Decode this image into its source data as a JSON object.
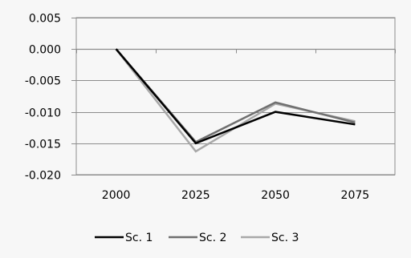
{
  "chart_data": {
    "type": "line",
    "title": "",
    "xlabel": "",
    "ylabel": "",
    "categories": [
      "2000",
      "2025",
      "2050",
      "2075"
    ],
    "ylim": [
      -0.02,
      0.005
    ],
    "y_ticks": [
      0.005,
      0.0,
      -0.005,
      -0.01,
      -0.015,
      -0.02
    ],
    "y_tick_labels": [
      "0.005",
      "0.000",
      "-0.005",
      "-0.010",
      "-0.015",
      "-0.020"
    ],
    "grid": true,
    "legend_position": "bottom",
    "series": [
      {
        "name": "Sc. 1",
        "color": "#000000",
        "values": [
          0.0,
          -0.015,
          -0.01,
          -0.012
        ]
      },
      {
        "name": "Sc. 2",
        "color": "#6f6f6f",
        "values": [
          0.0,
          -0.0148,
          -0.0085,
          -0.0117
        ]
      },
      {
        "name": "Sc. 3",
        "color": "#a8a8a8",
        "values": [
          0.0,
          -0.0163,
          -0.0087,
          -0.0115
        ]
      }
    ]
  }
}
